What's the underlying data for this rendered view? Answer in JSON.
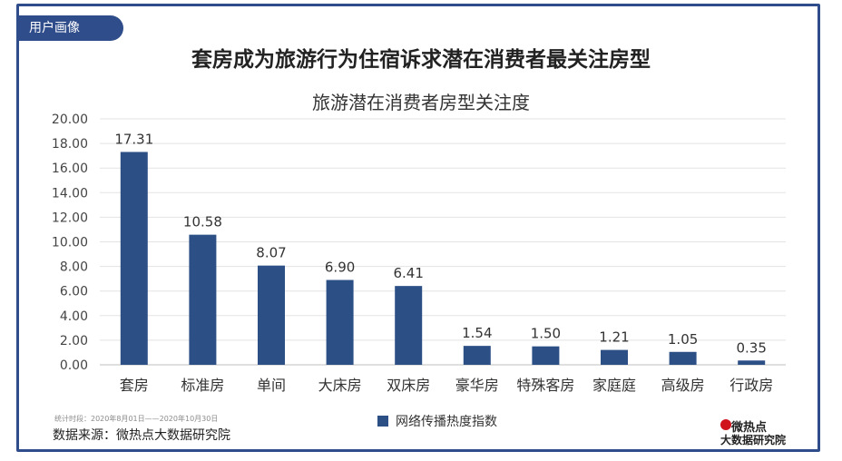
{
  "badge": "用户画像",
  "headline": "套房成为旅游行为住宿诉求潜在消费者最关注房型",
  "footer": {
    "period": "统计时段：2020年8月01日——2020年10月30日",
    "source": "数据来源：微热点大数据研究院"
  },
  "logo": {
    "top": "微热点",
    "bottom": "大数据研究院"
  },
  "colors": {
    "frame": "#2e4d8a",
    "bar": "#2c4f86"
  },
  "chart_data": {
    "type": "bar",
    "title": "旅游潜在消费者房型关注度",
    "categories": [
      "套房",
      "标准房",
      "单间",
      "大床房",
      "双床房",
      "豪华房",
      "特殊客房",
      "家庭庭",
      "高级房",
      "行政房"
    ],
    "series": [
      {
        "name": "网络传播热度指数",
        "values": [
          17.31,
          10.58,
          8.07,
          6.9,
          6.41,
          1.54,
          1.5,
          1.21,
          1.05,
          0.35
        ]
      }
    ],
    "value_labels": [
      "17.31",
      "10.58",
      "8.07",
      "6.90",
      "6.41",
      "1.54",
      "1.50",
      "1.21",
      "1.05",
      "0.35"
    ],
    "yticks": [
      "0.00",
      "2.00",
      "4.00",
      "6.00",
      "8.00",
      "10.00",
      "12.00",
      "14.00",
      "16.00",
      "18.00",
      "20.00"
    ],
    "ylim": [
      0,
      20
    ],
    "grid": true,
    "legend": "bottom"
  }
}
